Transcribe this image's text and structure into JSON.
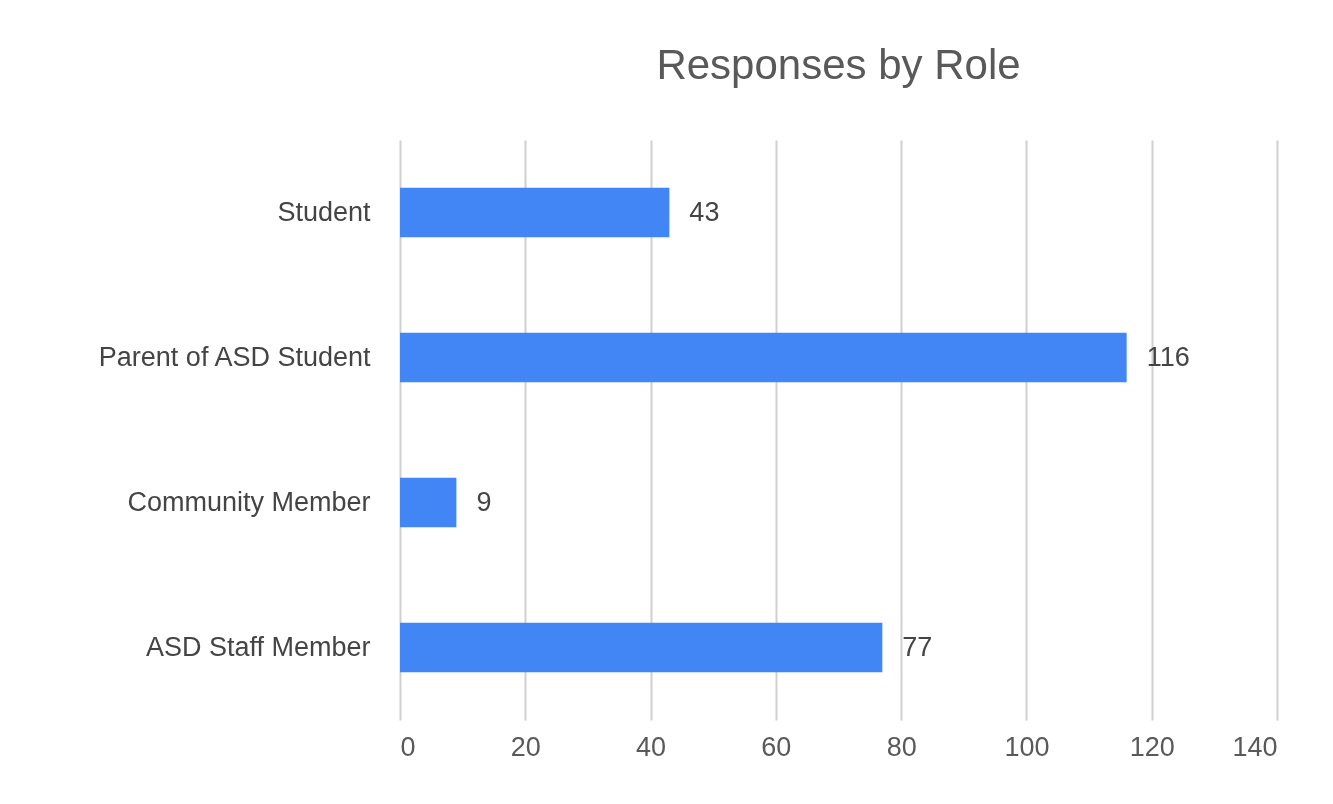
{
  "chart_data": {
    "type": "bar",
    "title": "Responses by Role",
    "orientation": "horizontal",
    "categories": [
      "Student",
      "Parent of ASD Student",
      "Community Member",
      "ASD Staff Member"
    ],
    "values": [
      43,
      116,
      9,
      77
    ],
    "color": "#4285f4",
    "xlim": [
      0,
      140
    ],
    "xticks": [
      0,
      20,
      40,
      60,
      80,
      100,
      120,
      140
    ],
    "grid": "x",
    "data_labels": true
  }
}
